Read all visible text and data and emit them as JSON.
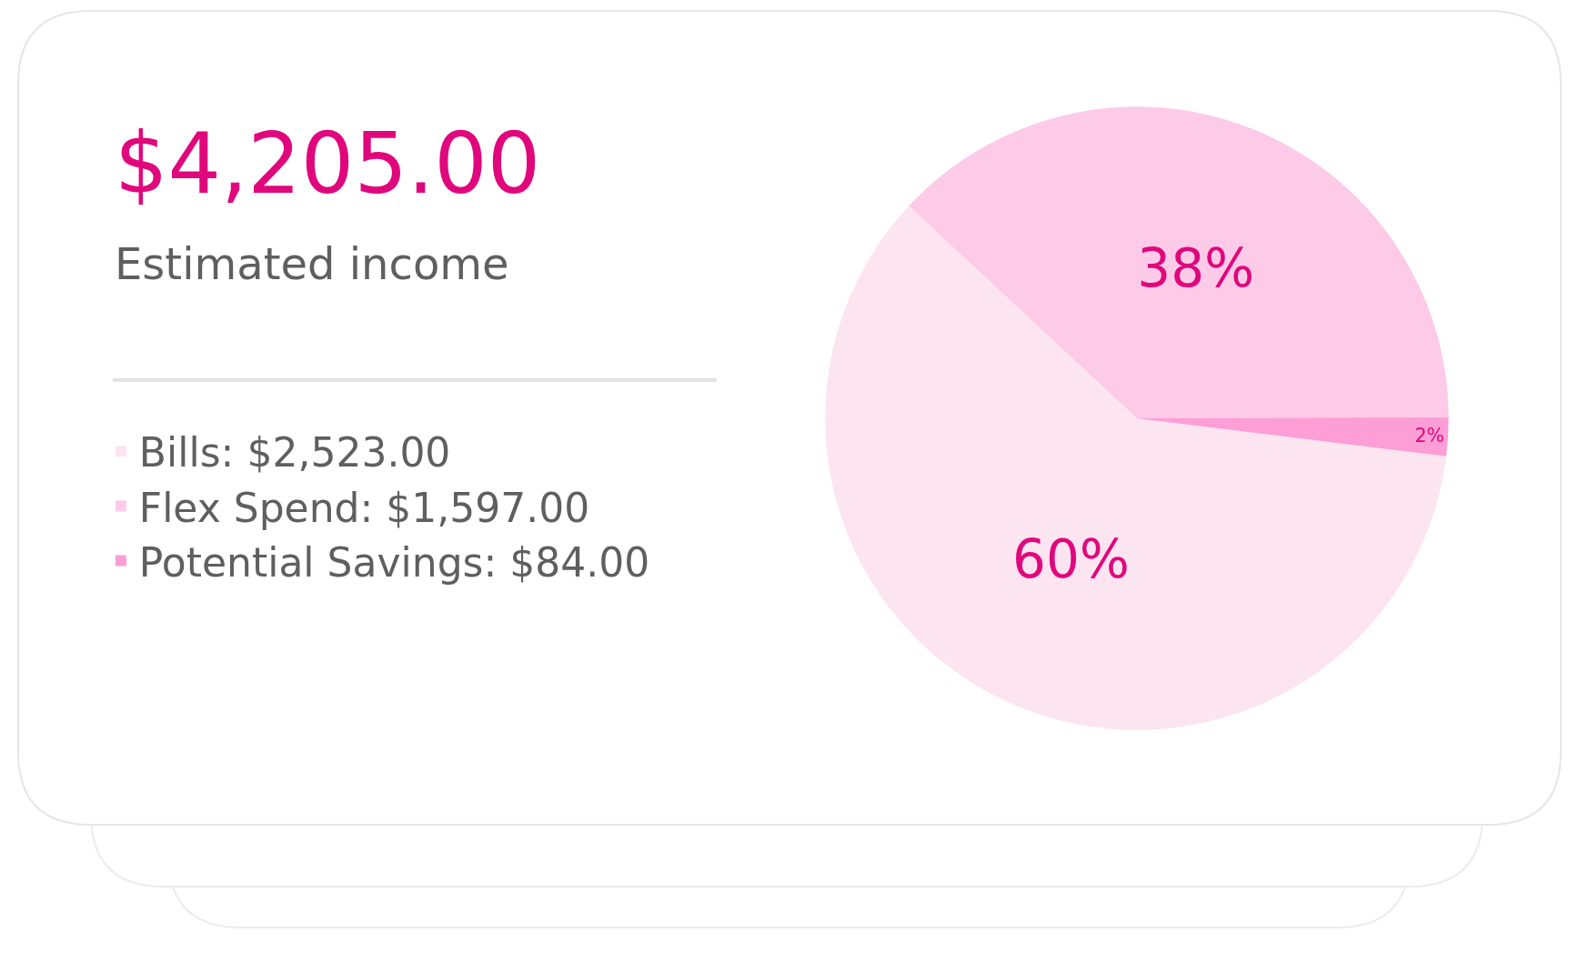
{
  "chart_data": {
    "type": "pie",
    "title": "$4,205.00",
    "subtitle": "Estimated income",
    "categories": [
      "Bills: $2,523.00",
      "Flex Spend: $1,597.00",
      "Potential Savings: $84.00"
    ],
    "values": [
      60,
      38,
      2
    ],
    "value_labels": [
      "60%",
      "38%",
      "2%"
    ],
    "colors": [
      "#fce4f1",
      "#fdcae8",
      "#fd9ed6"
    ],
    "legend": "left"
  }
}
